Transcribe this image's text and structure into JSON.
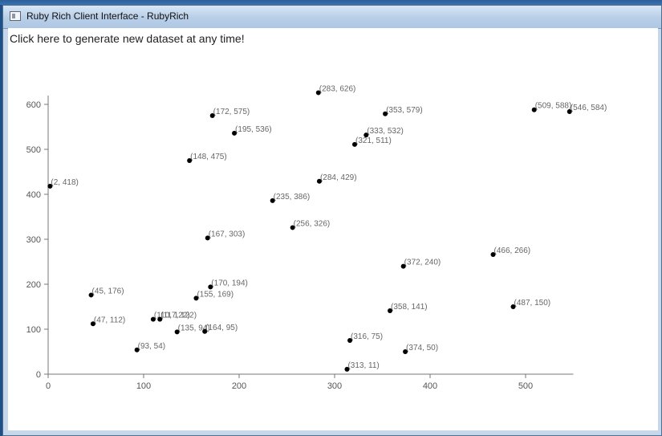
{
  "window": {
    "title": "Ruby Rich Client Interface - RubyRich"
  },
  "client": {
    "generate_text": "Click here to generate new dataset at any time!"
  },
  "chart_data": {
    "type": "scatter",
    "title": "",
    "xlabel": "",
    "ylabel": "",
    "xlim": [
      0,
      550
    ],
    "ylim": [
      0,
      626
    ],
    "x_ticks": [
      0,
      100,
      200,
      300,
      400,
      500
    ],
    "y_ticks": [
      0,
      100,
      200,
      300,
      400,
      500,
      600
    ],
    "points": [
      {
        "x": 283,
        "y": 626,
        "label": "(283, 626)"
      },
      {
        "x": 509,
        "y": 588,
        "label": "(509, 588)"
      },
      {
        "x": 546,
        "y": 584,
        "label": "(546, 584)"
      },
      {
        "x": 353,
        "y": 579,
        "label": "(353, 579)"
      },
      {
        "x": 172,
        "y": 575,
        "label": "(172, 575)"
      },
      {
        "x": 195,
        "y": 536,
        "label": "(195, 536)"
      },
      {
        "x": 333,
        "y": 532,
        "label": "(333, 532)"
      },
      {
        "x": 321,
        "y": 511,
        "label": "(321, 511)"
      },
      {
        "x": 148,
        "y": 475,
        "label": "(148, 475)"
      },
      {
        "x": 284,
        "y": 429,
        "label": "(284, 429)"
      },
      {
        "x": 2,
        "y": 418,
        "label": "(2, 418)"
      },
      {
        "x": 235,
        "y": 386,
        "label": "(235, 386)"
      },
      {
        "x": 256,
        "y": 326,
        "label": "(256, 326)"
      },
      {
        "x": 167,
        "y": 303,
        "label": "(167, 303)"
      },
      {
        "x": 466,
        "y": 266,
        "label": "(466, 266)"
      },
      {
        "x": 372,
        "y": 240,
        "label": "(372, 240)"
      },
      {
        "x": 170,
        "y": 194,
        "label": "(170, 194)"
      },
      {
        "x": 45,
        "y": 176,
        "label": "(45, 176)"
      },
      {
        "x": 155,
        "y": 169,
        "label": "(155, 169)"
      },
      {
        "x": 487,
        "y": 150,
        "label": "(487, 150)"
      },
      {
        "x": 358,
        "y": 141,
        "label": "(358, 141)"
      },
      {
        "x": 110,
        "y": 122,
        "label": "(110, 122)"
      },
      {
        "x": 117,
        "y": 122,
        "label": "(117, 122)"
      },
      {
        "x": 47,
        "y": 112,
        "label": "(47, 112)"
      },
      {
        "x": 135,
        "y": 94,
        "label": "(135, 94)"
      },
      {
        "x": 164,
        "y": 95,
        "label": "(164, 95)"
      },
      {
        "x": 316,
        "y": 75,
        "label": "(316, 75)"
      },
      {
        "x": 93,
        "y": 54,
        "label": "(93, 54)"
      },
      {
        "x": 374,
        "y": 50,
        "label": "(374, 50)"
      },
      {
        "x": 313,
        "y": 11,
        "label": "(313, 11)"
      }
    ]
  }
}
